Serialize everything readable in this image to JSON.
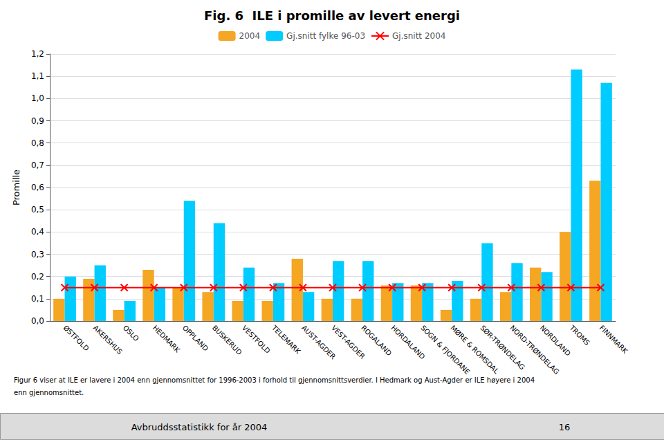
{
  "chart_data": {
    "type": "bar",
    "title": "Fig. 6  ILE i promille av levert energi",
    "ylabel": "Promille",
    "categories": [
      "ØSTFOLD",
      "AKERSHUS",
      "OSLO",
      "HEDMARK",
      "OPPLAND",
      "BUSKERUD",
      "VESTFOLD",
      "TELEMARK",
      "AUST-AGDER",
      "VEST-AGDER",
      "ROGALAND",
      "HORDALAND",
      "SOGN & FJORDANE",
      "MØRE & ROMSDAL",
      "SØR-TRØNDELAG",
      "NORD-TRØNDELAG",
      "NORDLAND",
      "TROMS",
      "FINNMARK"
    ],
    "series": [
      {
        "name": "2004",
        "type": "bar",
        "color": "#F5A623",
        "values": [
          0.1,
          0.19,
          0.05,
          0.23,
          0.15,
          0.13,
          0.09,
          0.09,
          0.28,
          0.1,
          0.1,
          0.16,
          0.16,
          0.05,
          0.1,
          0.13,
          0.24,
          0.4,
          0.63
        ]
      },
      {
        "name": "Gj.snitt fylke 96-03",
        "type": "bar",
        "color": "#00CCFF",
        "values": [
          0.2,
          0.25,
          0.09,
          0.15,
          0.54,
          0.44,
          0.24,
          0.17,
          0.13,
          0.27,
          0.27,
          0.17,
          0.17,
          0.18,
          0.35,
          0.26,
          0.22,
          1.13,
          1.07
        ]
      },
      {
        "name": "Gj.snitt 2004",
        "type": "line",
        "color": "#FF0000",
        "marker": "x",
        "values": [
          0.15,
          0.15,
          0.15,
          0.15,
          0.15,
          0.15,
          0.15,
          0.15,
          0.15,
          0.15,
          0.15,
          0.15,
          0.15,
          0.15,
          0.15,
          0.15,
          0.15,
          0.15,
          0.15
        ]
      }
    ],
    "ylim": [
      0.0,
      1.2
    ],
    "yticks": [
      {
        "value": 0.0,
        "label": "0,0"
      },
      {
        "value": 0.1,
        "label": "0,1"
      },
      {
        "value": 0.2,
        "label": "0,2"
      },
      {
        "value": 0.3,
        "label": "0,3"
      },
      {
        "value": 0.4,
        "label": "0,4"
      },
      {
        "value": 0.5,
        "label": "0,5"
      },
      {
        "value": 0.6,
        "label": "0,6"
      },
      {
        "value": 0.7,
        "label": "0,7"
      },
      {
        "value": 0.8,
        "label": "0,8"
      },
      {
        "value": 0.9,
        "label": "0,9"
      },
      {
        "value": 1.0,
        "label": "1,0"
      },
      {
        "value": 1.1,
        "label": "1,1"
      },
      {
        "value": 1.2,
        "label": "1,2"
      }
    ],
    "grid": true,
    "legend": "top",
    "annotations": [
      "Figur 6 viser at ILE er lavere i 2004 enn gjennomsnittet for 1996-2003 i forhold til gjennomsnittsverdier. I Hedmark og Aust-Agder er ILE høyere i 2004",
      "enn gjennomsnittet.",
      "Avbruddsstatistikk for år 2004",
      "16"
    ]
  }
}
